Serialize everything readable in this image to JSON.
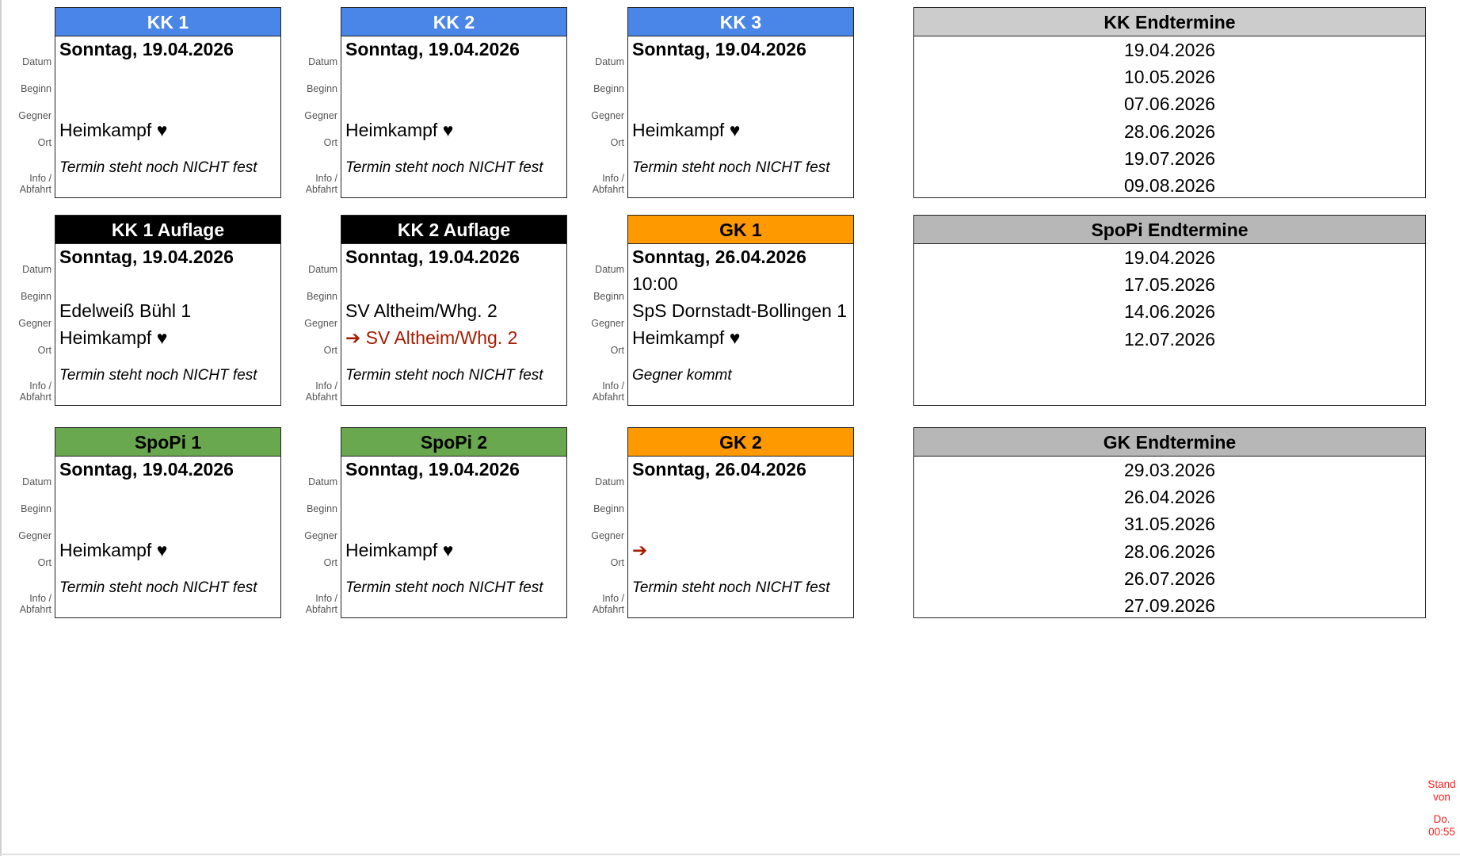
{
  "row_labels": {
    "datum": "Datum",
    "beginn": "Beginn",
    "gegner": "Gegner",
    "ort": "Ort",
    "info_1": "Info /",
    "info_2": "Abfahrt"
  },
  "cards": [
    {
      "title": "KK 1",
      "header_bg": "#4a86e8",
      "header_color": "#ffffff",
      "datum": "Sonntag, 19.04.2026",
      "beginn": "",
      "gegner": "",
      "ort": "Heimkampf ♥",
      "ort_away": false,
      "info": "Termin steht noch NICHT fest"
    },
    {
      "title": "KK 2",
      "header_bg": "#4a86e8",
      "header_color": "#ffffff",
      "datum": "Sonntag, 19.04.2026",
      "beginn": "",
      "gegner": "",
      "ort": "Heimkampf ♥",
      "ort_away": false,
      "info": "Termin steht noch NICHT fest"
    },
    {
      "title": "KK 3",
      "header_bg": "#4a86e8",
      "header_color": "#ffffff",
      "datum": "Sonntag, 19.04.2026",
      "beginn": "",
      "gegner": "",
      "ort": "Heimkampf ♥",
      "ort_away": false,
      "info": "Termin steht noch NICHT fest"
    },
    {
      "title": "KK 1 Auflage",
      "header_bg": "#000000",
      "header_color": "#ffffff",
      "datum": "Sonntag, 19.04.2026",
      "beginn": "",
      "gegner": "Edelweiß Bühl 1",
      "ort": "Heimkampf ♥",
      "ort_away": false,
      "info": "Termin steht noch NICHT fest"
    },
    {
      "title": "KK 2 Auflage",
      "header_bg": "#000000",
      "header_color": "#ffffff",
      "datum": "Sonntag, 19.04.2026",
      "beginn": "",
      "gegner": "SV Altheim/Whg. 2",
      "ort": "➔ SV Altheim/Whg. 2",
      "ort_away": true,
      "info": "Termin steht noch NICHT fest"
    },
    {
      "title": "GK 1",
      "header_bg": "#ff9900",
      "header_color": "#000000",
      "datum": "Sonntag, 26.04.2026",
      "beginn": "10:00",
      "gegner": "SpS Dornstadt-Bollingen 1",
      "ort": "Heimkampf ♥",
      "ort_away": false,
      "info": "Gegner kommt"
    },
    {
      "title": "SpoPi 1",
      "header_bg": "#6aa84f",
      "header_color": "#000000",
      "datum": "Sonntag, 19.04.2026",
      "beginn": "",
      "gegner": "",
      "ort": "Heimkampf ♥",
      "ort_away": false,
      "info": "Termin steht noch NICHT fest"
    },
    {
      "title": "SpoPi 2",
      "header_bg": "#6aa84f",
      "header_color": "#000000",
      "datum": "Sonntag, 19.04.2026",
      "beginn": "",
      "gegner": "",
      "ort": "Heimkampf ♥",
      "ort_away": false,
      "info": "Termin steht noch NICHT fest"
    },
    {
      "title": "GK 2",
      "header_bg": "#ff9900",
      "header_color": "#000000",
      "datum": "Sonntag, 26.04.2026",
      "beginn": "",
      "gegner": "",
      "ort": "➔",
      "ort_away": true,
      "info": "Termin steht noch NICHT fest"
    }
  ],
  "endtermine": [
    {
      "title": "KK Endtermine",
      "header_bg": "#cccccc",
      "dates": [
        "19.04.2026",
        "10.05.2026",
        "07.06.2026",
        "28.06.2026",
        "19.07.2026",
        "09.08.2026"
      ]
    },
    {
      "title": "SpoPi Endtermine",
      "header_bg": "#b7b7b7",
      "dates": [
        "19.04.2026",
        "17.05.2026",
        "14.06.2026",
        "12.07.2026"
      ]
    },
    {
      "title": "GK Endtermine",
      "header_bg": "#b7b7b7",
      "dates": [
        "29.03.2026",
        "26.04.2026",
        "31.05.2026",
        "28.06.2026",
        "26.07.2026",
        "27.09.2026"
      ]
    }
  ],
  "stand": {
    "line1": "Stand",
    "line2": "von",
    "line3": "Do.",
    "line4": "00:55"
  },
  "colors": {
    "away_text": "#a61c00",
    "stand_text": "#ff2020"
  }
}
